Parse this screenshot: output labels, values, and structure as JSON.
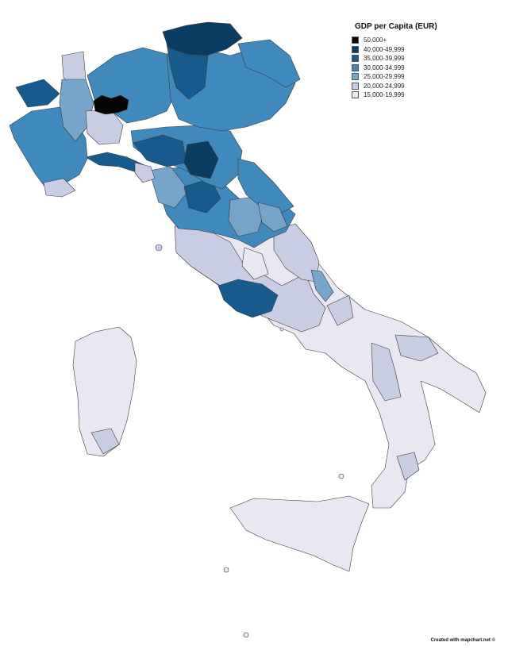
{
  "legend": {
    "title": "GDP per Capita (EUR)",
    "items": [
      {
        "label": "50,000+",
        "color": "#050505"
      },
      {
        "label": "40,000-49,999",
        "color": "#0a3d62"
      },
      {
        "label": "35,000-39,999",
        "color": "#175a8e"
      },
      {
        "label": "30,000-34,999",
        "color": "#3f89bc"
      },
      {
        "label": "25,000-29,999",
        "color": "#76a4cb"
      },
      {
        "label": "20,000-24,999",
        "color": "#c9cde3"
      },
      {
        "label": "15,000-19,999",
        "color": "#e8e7f2"
      }
    ]
  },
  "credit": "Created with mapchart.net ©"
}
